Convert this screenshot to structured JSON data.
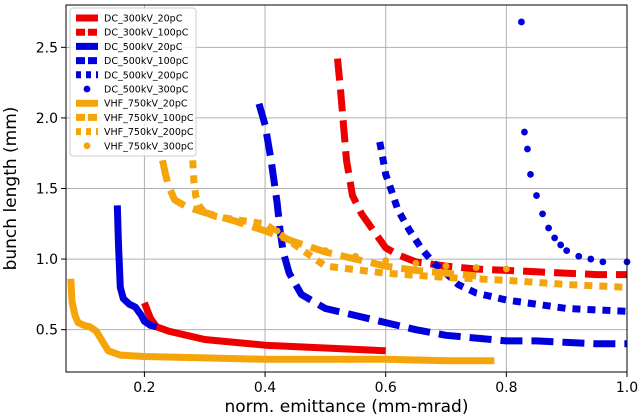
{
  "chart_data": {
    "type": "line",
    "title": "",
    "xlabel": "norm. emittance (mm-mrad)",
    "ylabel": "bunch length (mm)",
    "xlim": [
      0.07,
      1.0
    ],
    "ylim": [
      0.2,
      2.8
    ],
    "xticks": [
      0.2,
      0.4,
      0.6,
      0.8,
      1.0
    ],
    "xtick_labels": [
      "0.2",
      "0.4",
      "0.6",
      "0.8",
      "1.0"
    ],
    "yticks": [
      0.5,
      1.0,
      1.5,
      2.0,
      2.5
    ],
    "ytick_labels": [
      "0.5",
      "1.0",
      "1.5",
      "2.0",
      "2.5"
    ],
    "grid": true,
    "legend_position": "top-left",
    "series": [
      {
        "name": "DC_300kV_20pC",
        "color": "#ee0000",
        "style": "solid",
        "x": [
          0.2,
          0.21,
          0.22,
          0.24,
          0.27,
          0.3,
          0.35,
          0.4,
          0.45,
          0.5,
          0.55,
          0.6
        ],
        "y": [
          0.69,
          0.58,
          0.52,
          0.49,
          0.46,
          0.43,
          0.41,
          0.39,
          0.38,
          0.37,
          0.36,
          0.35
        ]
      },
      {
        "name": "DC_300kV_100pC",
        "color": "#ee0000",
        "style": "dashed",
        "x": [
          0.52,
          0.525,
          0.53,
          0.535,
          0.545,
          0.56,
          0.58,
          0.6,
          0.62,
          0.65,
          0.7,
          0.75,
          0.8,
          0.85,
          0.9,
          0.95,
          1.0
        ],
        "y": [
          2.42,
          2.2,
          1.95,
          1.7,
          1.45,
          1.32,
          1.2,
          1.08,
          1.03,
          0.98,
          0.95,
          0.93,
          0.92,
          0.91,
          0.9,
          0.89,
          0.89
        ]
      },
      {
        "name": "DC_500kV_20pC",
        "color": "#0000dd",
        "style": "solid",
        "x": [
          0.155,
          0.157,
          0.16,
          0.165,
          0.175,
          0.185,
          0.195,
          0.2,
          0.21,
          0.22
        ],
        "y": [
          1.38,
          1.1,
          0.8,
          0.72,
          0.68,
          0.66,
          0.6,
          0.56,
          0.53,
          0.52
        ]
      },
      {
        "name": "DC_500kV_100pC",
        "color": "#0000dd",
        "style": "dashed",
        "x": [
          0.39,
          0.4,
          0.41,
          0.42,
          0.425,
          0.43,
          0.44,
          0.46,
          0.5,
          0.55,
          0.6,
          0.65,
          0.7,
          0.75,
          0.8,
          0.85,
          0.9,
          0.95,
          1.0
        ],
        "y": [
          2.1,
          1.95,
          1.7,
          1.4,
          1.2,
          1.05,
          0.9,
          0.75,
          0.65,
          0.6,
          0.55,
          0.5,
          0.46,
          0.44,
          0.42,
          0.42,
          0.41,
          0.4,
          0.4
        ]
      },
      {
        "name": "DC_500kV_200pC",
        "color": "#0000dd",
        "style": "dotted",
        "x": [
          0.59,
          0.595,
          0.6,
          0.61,
          0.62,
          0.64,
          0.66,
          0.68,
          0.7,
          0.72,
          0.75,
          0.8,
          0.85,
          0.9,
          0.95,
          1.0
        ],
        "y": [
          1.83,
          1.72,
          1.6,
          1.48,
          1.35,
          1.2,
          1.07,
          0.97,
          0.9,
          0.82,
          0.76,
          0.71,
          0.68,
          0.65,
          0.64,
          0.63
        ]
      },
      {
        "name": "DC_500kV_300pC",
        "color": "#0000dd",
        "style": "markers",
        "x": [
          0.825,
          0.83,
          0.835,
          0.84,
          0.85,
          0.86,
          0.87,
          0.88,
          0.89,
          0.9,
          0.92,
          0.94,
          0.96,
          1.0
        ],
        "y": [
          2.68,
          1.9,
          1.78,
          1.6,
          1.45,
          1.32,
          1.22,
          1.15,
          1.1,
          1.06,
          1.02,
          1.0,
          0.98,
          0.98
        ]
      },
      {
        "name": "VHF_750kV_20pC",
        "color": "#f5a50a",
        "style": "solid",
        "x": [
          0.078,
          0.08,
          0.085,
          0.09,
          0.1,
          0.11,
          0.12,
          0.13,
          0.14,
          0.16,
          0.2,
          0.3,
          0.4,
          0.5,
          0.6,
          0.7,
          0.78
        ],
        "y": [
          0.86,
          0.7,
          0.6,
          0.55,
          0.53,
          0.52,
          0.49,
          0.42,
          0.35,
          0.32,
          0.31,
          0.3,
          0.29,
          0.29,
          0.29,
          0.28,
          0.28
        ]
      },
      {
        "name": "VHF_750kV_100pC",
        "color": "#f5a50a",
        "style": "dashed",
        "x": [
          0.23,
          0.235,
          0.24,
          0.25,
          0.27,
          0.3,
          0.35,
          0.4,
          0.45,
          0.5,
          0.55,
          0.6,
          0.65,
          0.7,
          0.75
        ],
        "y": [
          1.7,
          1.6,
          1.52,
          1.42,
          1.37,
          1.33,
          1.27,
          1.2,
          1.12,
          1.05,
          1.0,
          0.95,
          0.92,
          0.9,
          0.88
        ]
      },
      {
        "name": "VHF_750kV_200pC",
        "color": "#f5a50a",
        "style": "dotted",
        "x": [
          0.28,
          0.282,
          0.285,
          0.29,
          0.3,
          0.32,
          0.35,
          0.4,
          0.45,
          0.5,
          0.6,
          0.7,
          0.8,
          0.9,
          1.0
        ],
        "y": [
          1.7,
          1.55,
          1.45,
          1.38,
          1.33,
          1.3,
          1.28,
          1.25,
          1.1,
          0.95,
          0.9,
          0.87,
          0.85,
          0.82,
          0.8
        ]
      },
      {
        "name": "VHF_750kV_300pC",
        "color": "#f5a50a",
        "style": "markers",
        "x": [
          0.42,
          0.45,
          0.5,
          0.55,
          0.6,
          0.65,
          0.7,
          0.75,
          0.8
        ],
        "y": [
          1.2,
          1.12,
          1.06,
          1.02,
          0.99,
          0.97,
          0.95,
          0.94,
          0.93
        ]
      }
    ]
  }
}
